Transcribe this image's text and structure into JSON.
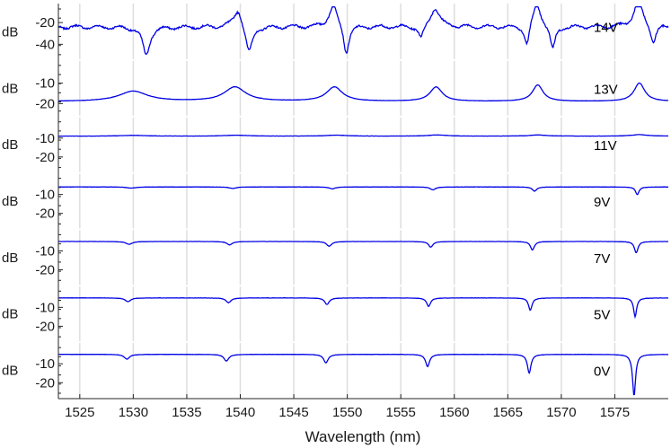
{
  "chart_data": {
    "type": "line",
    "xlabel": "Wavelength (nm)",
    "xlim": [
      1523,
      1580
    ],
    "x_ticks": [
      1525,
      1530,
      1535,
      1540,
      1545,
      1550,
      1555,
      1560,
      1565,
      1570,
      1575
    ],
    "grid": "vertical",
    "line_color": "#0000e6",
    "panels": [
      {
        "label": "14V",
        "ylabel": "dB",
        "ylim": [
          -52,
          -5
        ],
        "y_ticks": [
          -20,
          -40
        ],
        "base": -24,
        "features": [
          {
            "x": 1531.2,
            "depth": -26,
            "width": 0.4
          },
          {
            "x": 1539.8,
            "depth": 18,
            "width": 0.5
          },
          {
            "x": 1540.8,
            "depth": -26,
            "width": 0.4
          },
          {
            "x": 1548.7,
            "depth": 20,
            "width": 0.5
          },
          {
            "x": 1549.9,
            "depth": -26,
            "width": 0.3
          },
          {
            "x": 1556.9,
            "depth": -12,
            "width": 0.3
          },
          {
            "x": 1558.2,
            "depth": 18,
            "width": 0.5
          },
          {
            "x": 1566.8,
            "depth": -20,
            "width": 0.3
          },
          {
            "x": 1567.7,
            "depth": 22,
            "width": 0.5
          },
          {
            "x": 1569.2,
            "depth": -22,
            "width": 0.3
          },
          {
            "x": 1577.2,
            "depth": 24,
            "width": 0.5
          },
          {
            "x": 1578.6,
            "depth": -16,
            "width": 0.3
          }
        ]
      },
      {
        "label": "13V",
        "ylabel": "dB",
        "ylim": [
          -25,
          0
        ],
        "y_ticks": [
          -10,
          -20
        ],
        "base": -19,
        "features": [
          {
            "x": 1530.0,
            "depth": 5,
            "width": 1.6
          },
          {
            "x": 1539.5,
            "depth": 7,
            "width": 1.2
          },
          {
            "x": 1548.8,
            "depth": 7,
            "width": 0.9
          },
          {
            "x": 1558.3,
            "depth": 7,
            "width": 0.7
          },
          {
            "x": 1567.8,
            "depth": 8,
            "width": 0.6
          },
          {
            "x": 1577.3,
            "depth": 9,
            "width": 0.6
          }
        ]
      },
      {
        "label": "11V",
        "ylabel": "dB",
        "ylim": [
          -27,
          0
        ],
        "y_ticks": [
          -10,
          -20
        ],
        "base": -9,
        "features": [
          {
            "x": 1530.0,
            "depth": 0.4,
            "width": 1.5
          },
          {
            "x": 1539.6,
            "depth": 0.5,
            "width": 1.3
          },
          {
            "x": 1549.0,
            "depth": 0.5,
            "width": 1.2
          },
          {
            "x": 1558.4,
            "depth": 0.6,
            "width": 1.1
          },
          {
            "x": 1567.8,
            "depth": 0.6,
            "width": 1.0
          },
          {
            "x": 1577.3,
            "depth": 0.8,
            "width": 0.9
          }
        ]
      },
      {
        "label": "9V",
        "ylabel": "dB",
        "ylim": [
          -27,
          0
        ],
        "y_ticks": [
          -10,
          -20
        ],
        "base": -6,
        "features": [
          {
            "x": 1529.8,
            "depth": -0.6,
            "width": 0.5
          },
          {
            "x": 1539.3,
            "depth": -0.8,
            "width": 0.4
          },
          {
            "x": 1548.6,
            "depth": -1.0,
            "width": 0.35
          },
          {
            "x": 1558.0,
            "depth": -1.5,
            "width": 0.3
          },
          {
            "x": 1567.5,
            "depth": -2.2,
            "width": 0.25
          },
          {
            "x": 1577.1,
            "depth": -4.0,
            "width": 0.2
          }
        ]
      },
      {
        "label": "7V",
        "ylabel": "dB",
        "ylim": [
          -27,
          0
        ],
        "y_ticks": [
          -10,
          -20
        ],
        "base": -5,
        "features": [
          {
            "x": 1529.6,
            "depth": -1.5,
            "width": 0.35
          },
          {
            "x": 1539.0,
            "depth": -1.8,
            "width": 0.3
          },
          {
            "x": 1548.3,
            "depth": -2.5,
            "width": 0.28
          },
          {
            "x": 1557.8,
            "depth": -3.0,
            "width": 0.25
          },
          {
            "x": 1567.3,
            "depth": -4.5,
            "width": 0.22
          },
          {
            "x": 1577.0,
            "depth": -6.0,
            "width": 0.2
          }
        ]
      },
      {
        "label": "5V",
        "ylabel": "dB",
        "ylim": [
          -27,
          0
        ],
        "y_ticks": [
          -10,
          -20
        ],
        "base": -5,
        "features": [
          {
            "x": 1529.5,
            "depth": -2.0,
            "width": 0.3
          },
          {
            "x": 1538.9,
            "depth": -2.5,
            "width": 0.28
          },
          {
            "x": 1548.1,
            "depth": -3.5,
            "width": 0.25
          },
          {
            "x": 1557.6,
            "depth": -4.5,
            "width": 0.22
          },
          {
            "x": 1567.1,
            "depth": -6.5,
            "width": 0.2
          },
          {
            "x": 1576.9,
            "depth": -10.0,
            "width": 0.17
          }
        ]
      },
      {
        "label": "0V",
        "ylabel": "dB",
        "ylim": [
          -27,
          0
        ],
        "y_ticks": [
          -10,
          -20
        ],
        "base": -5,
        "features": [
          {
            "x": 1529.4,
            "depth": -2.5,
            "width": 0.3
          },
          {
            "x": 1538.7,
            "depth": -3.5,
            "width": 0.28
          },
          {
            "x": 1548.0,
            "depth": -4.5,
            "width": 0.25
          },
          {
            "x": 1557.5,
            "depth": -6.5,
            "width": 0.22
          },
          {
            "x": 1567.0,
            "depth": -10.0,
            "width": 0.2
          },
          {
            "x": 1576.8,
            "depth": -22.0,
            "width": 0.17
          }
        ]
      }
    ]
  }
}
